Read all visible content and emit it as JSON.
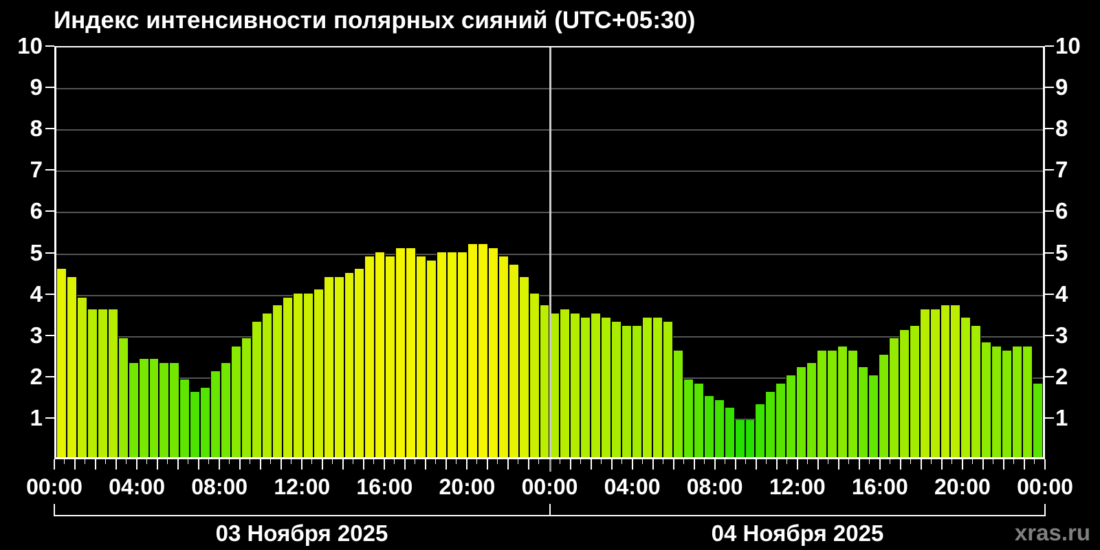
{
  "title": "Индекс интенсивности полярных сияний (UTC+05:30)",
  "watermark": "xras.ru",
  "colors": {
    "background": "#000000",
    "axis": "#ffffff",
    "gridline": "#555555",
    "day_separator_upper": "#cccccc",
    "day_separator_lower": "#999999",
    "text": "#ffffff",
    "watermark_text": "#808080",
    "bar_high": "#f5f500",
    "bar_low": "#2be000"
  },
  "chart_data": {
    "type": "bar",
    "title": "Индекс интенсивности полярных сияний (UTC+05:30)",
    "ylabel": "",
    "xlabel": "",
    "ylim": [
      0,
      10
    ],
    "yticks": [
      1,
      2,
      3,
      4,
      5,
      6,
      7,
      8,
      9,
      10
    ],
    "grid": true,
    "bar_interval_minutes": 30,
    "xtick_labels": [
      "00:00",
      "04:00",
      "08:00",
      "12:00",
      "16:00",
      "20:00",
      "00:00",
      "04:00",
      "08:00",
      "12:00",
      "16:00",
      "20:00",
      "00:00"
    ],
    "color_scale": {
      "high_value_color": "yellow",
      "low_value_color": "green",
      "rule": "hue shifts from 60 (yellow) at index ~5.2 toward 112 (green) at low index"
    },
    "days": [
      {
        "label": "03 Ноября 2025",
        "values": [
          4.6,
          4.4,
          3.9,
          3.6,
          3.6,
          3.6,
          2.9,
          2.3,
          2.4,
          2.4,
          2.3,
          2.3,
          1.9,
          1.6,
          1.7,
          2.1,
          2.3,
          2.7,
          2.9,
          3.3,
          3.5,
          3.7,
          3.9,
          4.0,
          4.0,
          4.1,
          4.4,
          4.4,
          4.5,
          4.6,
          4.9,
          5.0,
          4.9,
          5.1,
          5.1,
          4.9,
          4.8,
          5.0,
          5.0,
          5.0,
          5.2,
          5.2,
          5.1,
          4.9,
          4.7,
          4.4,
          4.0,
          3.7
        ]
      },
      {
        "label": "04 Ноября 2025",
        "values": [
          3.5,
          3.6,
          3.5,
          3.4,
          3.5,
          3.4,
          3.3,
          3.2,
          3.2,
          3.4,
          3.4,
          3.3,
          2.6,
          1.9,
          1.8,
          1.5,
          1.4,
          1.2,
          0.9,
          0.9,
          1.3,
          1.6,
          1.8,
          2.0,
          2.2,
          2.3,
          2.6,
          2.6,
          2.7,
          2.6,
          2.2,
          2.0,
          2.5,
          2.9,
          3.1,
          3.2,
          3.6,
          3.6,
          3.7,
          3.7,
          3.4,
          3.2,
          2.8,
          2.7,
          2.6,
          2.7,
          2.7,
          1.8
        ]
      }
    ]
  }
}
